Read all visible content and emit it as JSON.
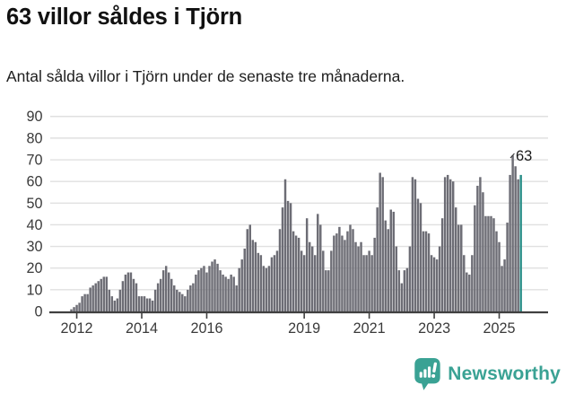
{
  "header": {
    "title": "63 villor såldes i Tjörn",
    "subtitle": "Antal sålda villor i Tjörn under de senaste tre månaderna."
  },
  "chart_data": {
    "type": "bar",
    "title": "63 villor såldes i Tjörn",
    "subtitle": "Antal sålda villor i Tjörn under de senaste tre månaderna.",
    "xlabel": "",
    "ylabel": "",
    "ylim": [
      0,
      90
    ],
    "grid": true,
    "legend": "none",
    "y_ticks": [
      0,
      10,
      20,
      30,
      40,
      50,
      60,
      70,
      80,
      90
    ],
    "x_ticks": [
      {
        "label": "2012",
        "index": 2
      },
      {
        "label": "2014",
        "index": 26
      },
      {
        "label": "2016",
        "index": 50
      },
      {
        "label": "2019",
        "index": 86
      },
      {
        "label": "2021",
        "index": 110
      },
      {
        "label": "2023",
        "index": 134
      },
      {
        "label": "2025",
        "index": 158
      }
    ],
    "x_start": "2011-11",
    "x_end": "2025-09",
    "values": [
      1,
      2,
      3,
      4,
      7,
      8,
      8,
      11,
      12,
      13,
      14,
      15,
      16,
      16,
      10,
      7,
      5,
      6,
      10,
      14,
      17,
      18,
      18,
      15,
      13,
      7,
      7,
      7,
      6,
      6,
      5,
      10,
      13,
      15,
      19,
      21,
      18,
      15,
      12,
      10,
      9,
      8,
      7,
      10,
      12,
      13,
      17,
      19,
      20,
      21,
      18,
      21,
      23,
      24,
      22,
      19,
      17,
      16,
      15,
      17,
      16,
      12,
      20,
      24,
      29,
      38,
      40,
      33,
      32,
      27,
      26,
      21,
      20,
      21,
      25,
      26,
      28,
      38,
      48,
      61,
      51,
      50,
      37,
      35,
      34,
      28,
      26,
      43,
      32,
      30,
      26,
      45,
      40,
      28,
      19,
      19,
      28,
      35,
      36,
      39,
      35,
      33,
      37,
      40,
      38,
      32,
      30,
      32,
      26,
      26,
      28,
      26,
      34,
      48,
      64,
      62,
      42,
      38,
      47,
      46,
      30,
      19,
      13,
      19,
      20,
      30,
      62,
      61,
      52,
      50,
      37,
      37,
      36,
      26,
      25,
      24,
      30,
      43,
      62,
      63,
      61,
      60,
      48,
      40,
      40,
      26,
      18,
      17,
      26,
      49,
      58,
      62,
      55,
      44,
      44,
      44,
      43,
      37,
      32,
      21,
      24,
      41,
      63,
      72,
      67,
      61,
      63
    ],
    "highlight": {
      "index": 166,
      "value": 63,
      "label": "63"
    },
    "colors": {
      "bar": "#6d6d75",
      "highlight": "#2c8f89",
      "grid": "#e0e0e0",
      "axis": "#404040",
      "tick_label": "#3a3a3a"
    }
  },
  "footer": {
    "brand_name": "Newsworthy",
    "brand_color": "#3aa294",
    "logo_icon": "newsworthy-pin-chart-icon"
  }
}
